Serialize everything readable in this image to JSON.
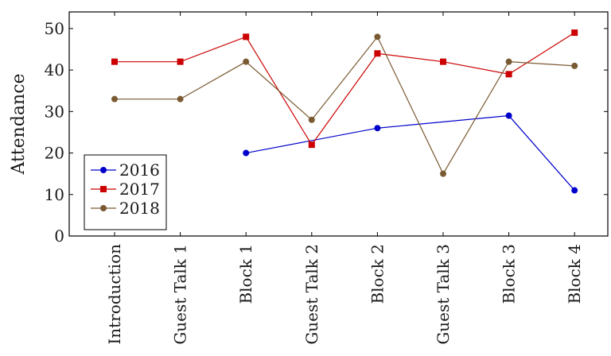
{
  "chart_data": {
    "type": "line",
    "categories": [
      "Introduction",
      "Guest Talk 1",
      "Block 1",
      "Guest Talk 2",
      "Block 2",
      "Guest Talk 3",
      "Block 3",
      "Block 4"
    ],
    "series": [
      {
        "name": "2016",
        "color": "#0000cc",
        "marker": "circle",
        "values": [
          null,
          null,
          20,
          null,
          26,
          null,
          29,
          11
        ]
      },
      {
        "name": "2017",
        "color": "#cc0000",
        "marker": "square",
        "values": [
          42,
          42,
          48,
          22,
          44,
          42,
          39,
          49
        ]
      },
      {
        "name": "2018",
        "color": "#7a5a32",
        "marker": "circle",
        "values": [
          33,
          33,
          42,
          28,
          48,
          15,
          42,
          41
        ]
      }
    ],
    "title": "",
    "xlabel": "",
    "ylabel": "Attendance",
    "ylim": [
      0,
      54
    ],
    "yticks": [
      0,
      10,
      20,
      30,
      40,
      50
    ],
    "grid": false,
    "legend_position": "bottom-left"
  }
}
